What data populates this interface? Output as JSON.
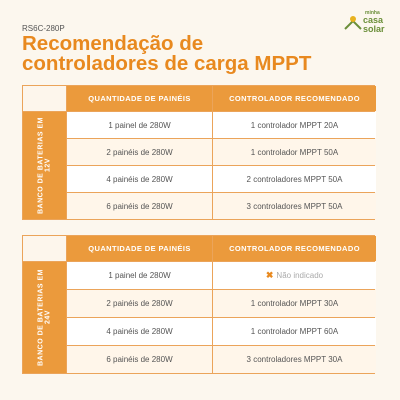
{
  "header": {
    "code": "RS6C-280P",
    "title_lines": [
      "Recomendação de",
      "controladores de carga MPPT"
    ],
    "logo": [
      "minha",
      "casa",
      "solar"
    ]
  },
  "tables": [
    {
      "battery_label": "BANCO DE BATERIAS EM 12V",
      "headers": [
        "QUANTIDADE DE PAINÉIS",
        "CONTROLADOR RECOMENDADO"
      ],
      "rows": [
        [
          "1 painel de 280W",
          "1 controlador MPPT 20A"
        ],
        [
          "2 painéis de 280W",
          "1 controlador MPPT 50A"
        ],
        [
          "4 painéis de 280W",
          "2 controladores MPPT 50A"
        ],
        [
          "6 painéis de 280W",
          "3 controladores MPPT 50A"
        ]
      ]
    },
    {
      "battery_label": "BANCO DE BATERIAS EM 24V",
      "headers": [
        "QUANTIDADE DE PAINÉIS",
        "CONTROLADOR RECOMENDADO"
      ],
      "rows": [
        [
          "1 painel de 280W",
          "Não indicado"
        ],
        [
          "2 painéis de 280W",
          "1 controlador MPPT 30A"
        ],
        [
          "4 painéis de 280W",
          "1 controlador MPPT 60A"
        ],
        [
          "6 painéis de 280W",
          "3 controladores MPPT 30A"
        ]
      ]
    }
  ]
}
